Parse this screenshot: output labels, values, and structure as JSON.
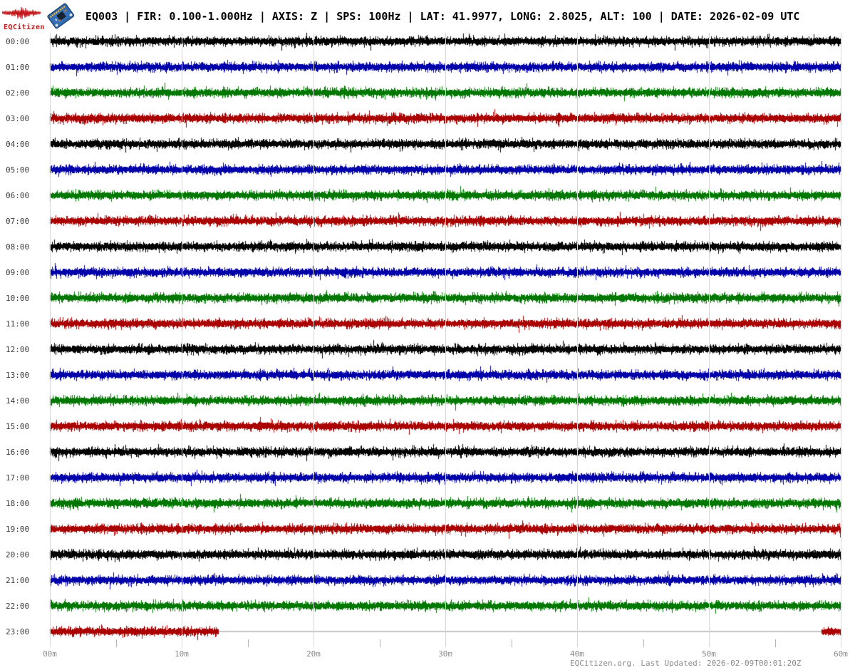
{
  "header": {
    "station_title": "EQ003 | FIR: 0.100-1.000Hz | AXIS: Z | SPS: 100Hz | LAT: 41.9977, LONG: 2.8025, ALT: 100 | DATE: 2026-02-09 UTC",
    "logo_text": "EQCitizen",
    "logo_color": "#c2181b"
  },
  "footer": {
    "text": "EQCitizen.org. Last Updated: 2026-02-09T00:01:20Z"
  },
  "chart_data": {
    "type": "line",
    "subtype": "helicorder_day_plot",
    "title": "EQ003 | FIR: 0.100-1.000Hz | AXIS: Z | SPS: 100Hz | LAT: 41.9977, LONG: 2.8025, ALT: 100 | DATE: 2026-02-09 UTC",
    "x_axis": {
      "tick_labels": [
        "00m",
        "10m",
        "20m",
        "30m",
        "40m",
        "50m",
        "60m"
      ],
      "tick_minutes": [
        0,
        10,
        20,
        30,
        40,
        50,
        60
      ],
      "minor_tick_minutes": [
        5,
        15,
        25,
        35,
        45,
        55
      ],
      "range_minutes": [
        0,
        60
      ],
      "grid": true
    },
    "y_axis": {
      "tick_labels": [
        "00:00",
        "01:00",
        "02:00",
        "03:00",
        "04:00",
        "05:00",
        "06:00",
        "07:00",
        "08:00",
        "09:00",
        "10:00",
        "11:00",
        "12:00",
        "13:00",
        "14:00",
        "15:00",
        "16:00",
        "17:00",
        "18:00",
        "19:00",
        "20:00",
        "21:00",
        "22:00",
        "23:00"
      ]
    },
    "palette": {
      "black": "#000000",
      "blue": "#0000aa",
      "green": "#007700",
      "red": "#aa0000"
    },
    "rows": [
      {
        "time": "00:00",
        "color": "black",
        "segments": [
          [
            0,
            60
          ]
        ]
      },
      {
        "time": "01:00",
        "color": "blue",
        "segments": [
          [
            0,
            60
          ]
        ]
      },
      {
        "time": "02:00",
        "color": "green",
        "segments": [
          [
            0,
            60
          ]
        ]
      },
      {
        "time": "03:00",
        "color": "red",
        "segments": [
          [
            0,
            60
          ]
        ]
      },
      {
        "time": "04:00",
        "color": "black",
        "segments": [
          [
            0,
            60
          ]
        ]
      },
      {
        "time": "05:00",
        "color": "blue",
        "segments": [
          [
            0,
            60
          ]
        ]
      },
      {
        "time": "06:00",
        "color": "green",
        "segments": [
          [
            0,
            60
          ]
        ]
      },
      {
        "time": "07:00",
        "color": "red",
        "segments": [
          [
            0,
            60
          ]
        ]
      },
      {
        "time": "08:00",
        "color": "black",
        "segments": [
          [
            0,
            60
          ]
        ]
      },
      {
        "time": "09:00",
        "color": "blue",
        "segments": [
          [
            0,
            60
          ]
        ]
      },
      {
        "time": "10:00",
        "color": "green",
        "segments": [
          [
            0,
            60
          ]
        ]
      },
      {
        "time": "11:00",
        "color": "red",
        "segments": [
          [
            0,
            60
          ]
        ]
      },
      {
        "time": "12:00",
        "color": "black",
        "segments": [
          [
            0,
            60
          ]
        ]
      },
      {
        "time": "13:00",
        "color": "blue",
        "segments": [
          [
            0,
            60
          ]
        ]
      },
      {
        "time": "14:00",
        "color": "green",
        "segments": [
          [
            0,
            60
          ]
        ]
      },
      {
        "time": "15:00",
        "color": "red",
        "segments": [
          [
            0,
            60
          ]
        ]
      },
      {
        "time": "16:00",
        "color": "black",
        "segments": [
          [
            0,
            60
          ]
        ]
      },
      {
        "time": "17:00",
        "color": "blue",
        "segments": [
          [
            0,
            60
          ]
        ]
      },
      {
        "time": "18:00",
        "color": "green",
        "segments": [
          [
            0,
            60
          ]
        ]
      },
      {
        "time": "19:00",
        "color": "red",
        "segments": [
          [
            0,
            60
          ]
        ]
      },
      {
        "time": "20:00",
        "color": "black",
        "segments": [
          [
            0,
            60
          ]
        ]
      },
      {
        "time": "21:00",
        "color": "blue",
        "segments": [
          [
            0,
            60
          ]
        ]
      },
      {
        "time": "22:00",
        "color": "green",
        "segments": [
          [
            0,
            60
          ]
        ]
      },
      {
        "time": "23:00",
        "color": "red",
        "segments": [
          [
            0,
            12.75
          ],
          [
            58.55,
            60
          ]
        ],
        "no_data_gap": [
          12.75,
          58.55
        ]
      }
    ]
  }
}
